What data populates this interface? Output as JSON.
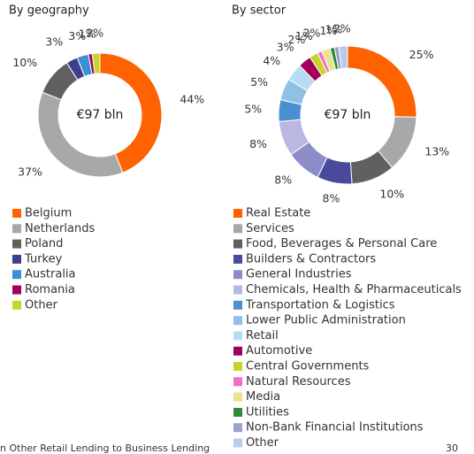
{
  "chart_data": [
    {
      "type": "pie",
      "title": "By geography",
      "center_label": "€97 bln",
      "categories": [
        "Belgium",
        "Netherlands",
        "Poland",
        "Turkey",
        "Australia",
        "Romania",
        "Other"
      ],
      "values": [
        44,
        37,
        10,
        3,
        3,
        1,
        2
      ],
      "value_labels": [
        "44%",
        "37%",
        "10%",
        "3%",
        "3%",
        "1%",
        "2%"
      ],
      "colors": [
        "#ff6200",
        "#a8a8a8",
        "#606060",
        "#3e3e8e",
        "#3b8fd6",
        "#a0005a",
        "#c8d42a"
      ]
    },
    {
      "type": "pie",
      "title": "By sector",
      "center_label": "€97 bln",
      "categories": [
        "Real Estate",
        "Services",
        "Food, Beverages & Personal Care",
        "Builders & Contractors",
        "General Industries",
        "Chemicals, Health & Pharmaceuticals",
        "Transportation & Logistics",
        "Lower Public Administration",
        "Retail",
        "Automotive",
        "Central Governments",
        "Natural Resources",
        "Media",
        "Utilities",
        "Non-Bank Financial Institutions",
        "Other"
      ],
      "values": [
        25,
        13,
        10,
        8,
        8,
        8,
        5,
        5,
        4,
        3,
        2,
        1,
        2,
        1,
        1,
        2
      ],
      "value_labels": [
        "25%",
        "13%",
        "10%",
        "8%",
        "8%",
        "8%",
        "5%",
        "5%",
        "4%",
        "3%",
        "2%",
        "1%",
        "2%",
        "1%",
        "1%",
        "2%"
      ],
      "colors": [
        "#ff6200",
        "#a8a8a8",
        "#606060",
        "#4a4a9c",
        "#8c8cc8",
        "#b8b8e0",
        "#4a90d0",
        "#8fc0e6",
        "#b8dcf2",
        "#a0005a",
        "#c8d42a",
        "#f06ec8",
        "#e6e68c",
        "#2e8b3e",
        "#a0a0c8",
        "#b8cce8"
      ]
    }
  ],
  "footnote": "n Other Retail Lending to Business Lending",
  "page_number": "30"
}
